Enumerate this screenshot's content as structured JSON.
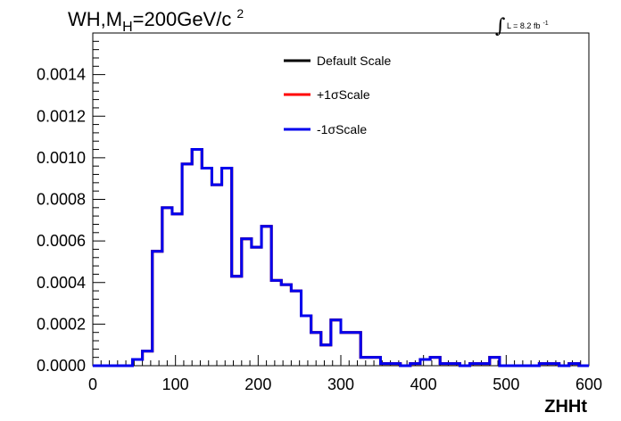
{
  "chart_data": {
    "type": "line",
    "title": "WH,M",
    "title_sub": "H",
    "title_rest": "=200GeV/c",
    "title_sup": "2",
    "luminosity": {
      "integral_symbol": "∫",
      "text": "L = 8.2 fb",
      "sup": "-1"
    },
    "xlabel": "ZHHt",
    "ylabel": "",
    "xlim": [
      0,
      600
    ],
    "ylim": [
      0,
      0.0016
    ],
    "xticks": [
      "0",
      "100",
      "200",
      "300",
      "400",
      "500",
      "600"
    ],
    "yticks": [
      "0.0000",
      "0.0002",
      "0.0004",
      "0.0006",
      "0.0008",
      "0.0010",
      "0.0012",
      "0.0014"
    ],
    "legend_placement": "top-center",
    "bin_edges": [
      0,
      12,
      24,
      36,
      48,
      60,
      72,
      84,
      96,
      108,
      120,
      132,
      144,
      156,
      168,
      180,
      192,
      204,
      216,
      228,
      240,
      252,
      264,
      276,
      288,
      300,
      312,
      324,
      336,
      348,
      360,
      372,
      384,
      396,
      408,
      420,
      432,
      444,
      456,
      468,
      480,
      492,
      504,
      516,
      528,
      540,
      552,
      564,
      576,
      588,
      600
    ],
    "series": [
      {
        "name": "Default Scale",
        "color": "#000000",
        "values": [
          0,
          0,
          0,
          0,
          3e-05,
          7e-05,
          0.00055,
          0.00076,
          0.00073,
          0.00097,
          0.00104,
          0.00095,
          0.00087,
          0.00095,
          0.00043,
          0.00061,
          0.00057,
          0.00067,
          0.00041,
          0.00039,
          0.00036,
          0.00024,
          0.00016,
          0.0001,
          0.00022,
          0.00016,
          0.00016,
          4e-05,
          4e-05,
          1e-05,
          1e-05,
          0,
          1e-05,
          3e-05,
          4e-05,
          1e-05,
          1e-05,
          0,
          1e-05,
          1e-05,
          4e-05,
          0,
          0,
          0,
          0,
          1e-05,
          1e-05,
          0,
          1e-05,
          0
        ]
      },
      {
        "name": "+1σScale",
        "color": "#ff0000",
        "values": [
          0,
          0,
          0,
          0,
          3e-05,
          7e-05,
          0.00055,
          0.00076,
          0.00073,
          0.00097,
          0.00104,
          0.00095,
          0.00087,
          0.00095,
          0.00043,
          0.00061,
          0.00057,
          0.00067,
          0.00041,
          0.00039,
          0.00036,
          0.00024,
          0.00016,
          0.0001,
          0.00022,
          0.00016,
          0.00016,
          4e-05,
          4e-05,
          1e-05,
          1e-05,
          0,
          1e-05,
          3e-05,
          4e-05,
          1e-05,
          1e-05,
          0,
          1e-05,
          1e-05,
          4e-05,
          0,
          0,
          0,
          0,
          1e-05,
          1e-05,
          0,
          1e-05,
          0
        ]
      },
      {
        "name": "-1σScale",
        "color": "#0000ee",
        "values": [
          0,
          0,
          0,
          0,
          3e-05,
          7e-05,
          0.00055,
          0.00076,
          0.00073,
          0.00097,
          0.00104,
          0.00095,
          0.00087,
          0.00095,
          0.00043,
          0.00061,
          0.00057,
          0.00067,
          0.00041,
          0.00039,
          0.00036,
          0.00024,
          0.00016,
          0.0001,
          0.00022,
          0.00016,
          0.00016,
          4e-05,
          4e-05,
          1e-05,
          1e-05,
          0,
          1e-05,
          3e-05,
          4e-05,
          1e-05,
          1e-05,
          0,
          1e-05,
          1e-05,
          4e-05,
          0,
          0,
          0,
          0,
          1e-05,
          1e-05,
          0,
          1e-05,
          0
        ]
      }
    ]
  }
}
